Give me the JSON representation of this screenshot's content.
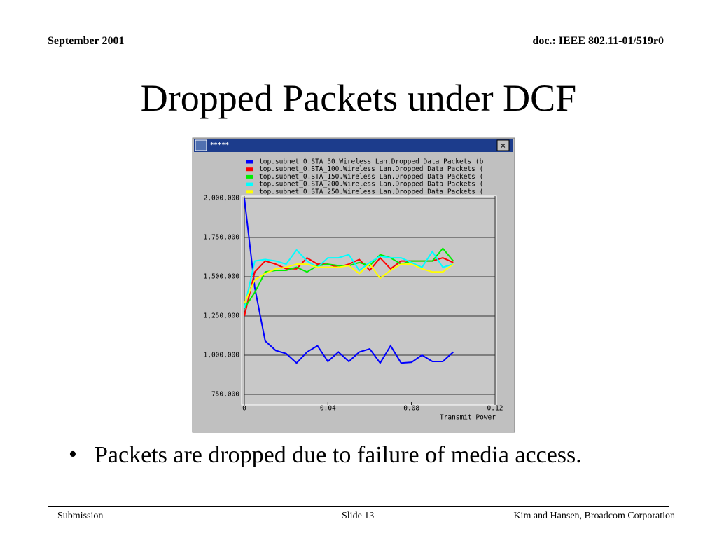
{
  "header": {
    "date": "September 2001",
    "doc": "doc.: IEEE 802.11-01/519r0"
  },
  "title": "Dropped Packets under DCF",
  "bullets": [
    "Packets are dropped due to failure of media access."
  ],
  "footer": {
    "left": "Submission",
    "center": "Slide 13",
    "right": "Kim and Hansen, Broadcom Corporation"
  },
  "chart_data": {
    "type": "line",
    "window_title": "*****",
    "xlabel": "Transmit Power",
    "x": [
      0,
      0.005,
      0.01,
      0.015,
      0.02,
      0.025,
      0.03,
      0.035,
      0.04,
      0.045,
      0.05,
      0.055,
      0.06,
      0.065,
      0.07,
      0.075,
      0.08,
      0.085,
      0.09,
      0.095,
      0.1
    ],
    "xlim": [
      0,
      0.12
    ],
    "xticks": [
      0,
      0.04,
      0.08,
      0.12
    ],
    "ylim": [
      750000,
      2000000
    ],
    "yticks": [
      {
        "value": 750000,
        "label": "750,000"
      },
      {
        "value": 1000000,
        "label": "1,000,000"
      },
      {
        "value": 1250000,
        "label": "1,250,000"
      },
      {
        "value": 1500000,
        "label": "1,500,000"
      },
      {
        "value": 1750000,
        "label": "1,750,000"
      },
      {
        "value": 2000000,
        "label": "2,000,000"
      }
    ],
    "grid": true,
    "series": [
      {
        "name": "top.subnet_0.STA_50.Wireless Lan.Dropped Data Packets (b",
        "color": "#0000ff",
        "values": [
          2000000,
          1430000,
          1090000,
          1030000,
          1010000,
          950000,
          1020000,
          1060000,
          960000,
          1020000,
          960000,
          1020000,
          1040000,
          950000,
          1060000,
          950000,
          955000,
          1000000,
          960000,
          960000,
          1020000
        ]
      },
      {
        "name": "top.subnet_0.STA_100.Wireless Lan.Dropped Data Packets (",
        "color": "#ff0000",
        "values": [
          1250000,
          1530000,
          1600000,
          1580000,
          1550000,
          1550000,
          1620000,
          1580000,
          1580000,
          1560000,
          1580000,
          1610000,
          1540000,
          1620000,
          1550000,
          1600000,
          1600000,
          1600000,
          1600000,
          1620000,
          1590000
        ]
      },
      {
        "name": "top.subnet_0.STA_150.Wireless Lan.Dropped Data Packets (",
        "color": "#00ee00",
        "values": [
          1300000,
          1400000,
          1530000,
          1540000,
          1540000,
          1560000,
          1530000,
          1570000,
          1580000,
          1570000,
          1570000,
          1590000,
          1570000,
          1640000,
          1620000,
          1580000,
          1600000,
          1600000,
          1600000,
          1680000,
          1600000
        ]
      },
      {
        "name": "top.subnet_0.STA_200.Wireless Lan.Dropped Data Packets (",
        "color": "#00ffff",
        "values": [
          1300000,
          1600000,
          1610000,
          1600000,
          1580000,
          1670000,
          1600000,
          1560000,
          1620000,
          1620000,
          1640000,
          1540000,
          1590000,
          1630000,
          1620000,
          1620000,
          1590000,
          1560000,
          1660000,
          1560000,
          1580000
        ]
      },
      {
        "name": "top.subnet_0.STA_250.Wireless Lan.Dropped Data Packets (",
        "color": "#ffff00",
        "values": [
          1330000,
          1480000,
          1520000,
          1550000,
          1560000,
          1580000,
          1580000,
          1560000,
          1560000,
          1560000,
          1570000,
          1520000,
          1580000,
          1490000,
          1540000,
          1580000,
          1580000,
          1550000,
          1530000,
          1530000,
          1580000
        ]
      }
    ]
  }
}
